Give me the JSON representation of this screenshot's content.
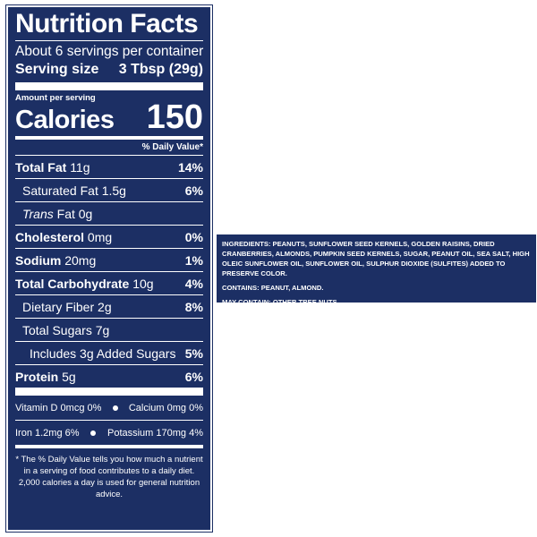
{
  "label": {
    "title": "Nutrition Facts",
    "servings_per_container": "About 6 servings per container",
    "serving_size_label": "Serving size",
    "serving_size_value": "3 Tbsp (29g)",
    "amount_per_serving": "Amount per serving",
    "calories_label": "Calories",
    "calories_value": "150",
    "daily_value_header": "% Daily Value*",
    "nutrients": [
      {
        "name": "Total Fat",
        "amount": "11g",
        "dv": "14%"
      },
      {
        "name": "Saturated Fat",
        "amount": "1.5g",
        "dv": "6%"
      },
      {
        "name": "Trans",
        "amount": "Fat 0g",
        "dv": ""
      },
      {
        "name": "Cholesterol",
        "amount": "0mg",
        "dv": "0%"
      },
      {
        "name": "Sodium",
        "amount": "20mg",
        "dv": "1%"
      },
      {
        "name": "Total Carbohydrate",
        "amount": "10g",
        "dv": "4%"
      },
      {
        "name": "Dietary Fiber",
        "amount": "2g",
        "dv": "8%"
      },
      {
        "name": "Total Sugars",
        "amount": "7g",
        "dv": ""
      },
      {
        "name": "Includes 3g Added Sugars",
        "amount": "",
        "dv": "5%"
      },
      {
        "name": "Protein",
        "amount": "5g",
        "dv": "6%"
      }
    ],
    "vitamins": [
      {
        "text": "Vitamin D 0mcg 0%"
      },
      {
        "text": "Calcium 0mg 0%"
      },
      {
        "text": "Iron 1.2mg 6%"
      },
      {
        "text": "Potassium 170mg 4%"
      }
    ],
    "footnote": "* The % Daily Value tells you how much a nutrient in a serving of food contributes to a daily diet. 2,000 calories a day is used for general nutrition advice."
  },
  "ingredients_panel": {
    "ingredients": "INGREDIENTS: PEANUTS, SUNFLOWER SEED KERNELS, GOLDEN RAISINS, DRIED CRANBERRIES, ALMONDS, PUMPKIN SEED KERNELS, SUGAR, PEANUT OIL, SEA SALT, HIGH OLEIC SUNFLOWER OIL, SUNFLOWER OIL, SULPHUR DIOXIDE (SULFITES) ADDED TO PRESERVE COLOR.",
    "contains": "CONTAINS: PEANUT, ALMOND.",
    "may_contain": "MAY CONTAIN: OTHER TREE NUTS."
  },
  "colors": {
    "label_background": "#1c2f64",
    "text": "#ffffff"
  }
}
